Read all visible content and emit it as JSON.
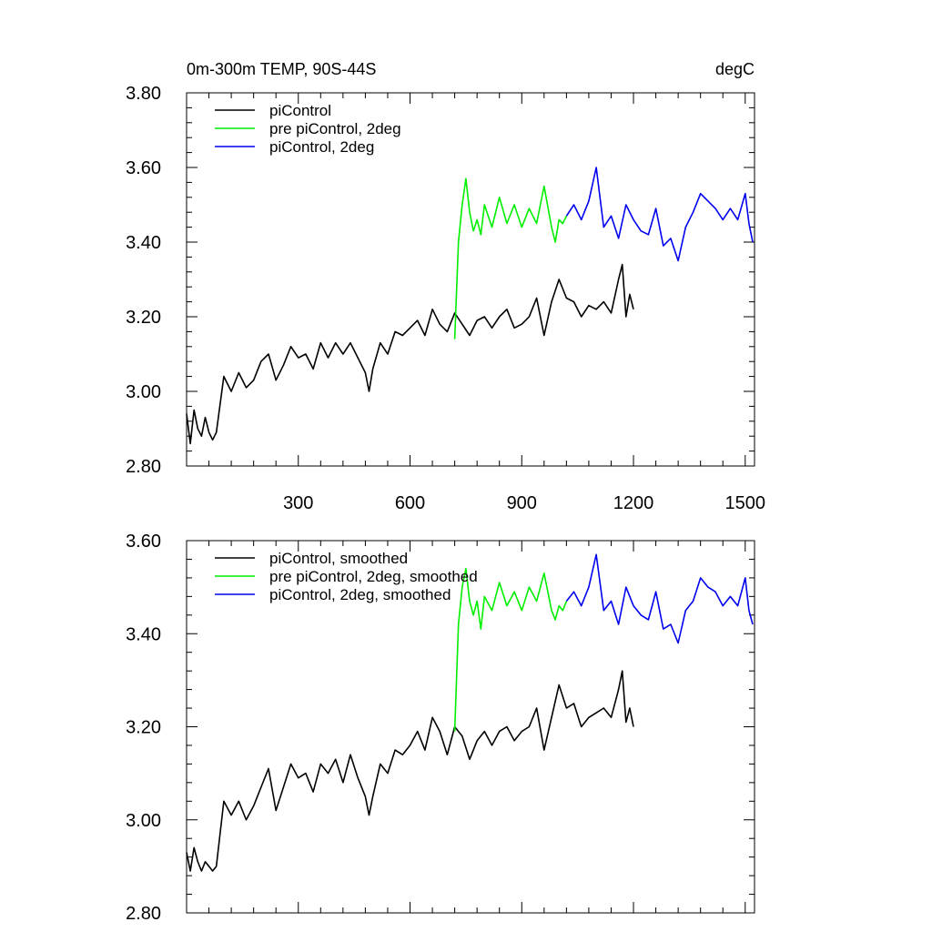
{
  "colors": {
    "piControl": "#000000",
    "pre_piControl_2deg": "#00ee00",
    "piControl_2deg": "#0000ee"
  },
  "chart_data": [
    {
      "type": "line",
      "title_left": "0m-300m TEMP, 90S-44S",
      "title_right": "degC",
      "xlim": [
        0,
        1525
      ],
      "ylim": [
        2.8,
        3.8
      ],
      "xticks": [
        300,
        600,
        900,
        1200,
        1500
      ],
      "xtick_labels": [
        "300",
        "600",
        "900",
        "1200",
        "1500"
      ],
      "yticks": [
        2.8,
        3.0,
        3.2,
        3.4,
        3.6,
        3.8
      ],
      "ytick_labels": [
        "2.80",
        "3.00",
        "3.20",
        "3.40",
        "3.60",
        "3.80"
      ],
      "legend_position": "top-left",
      "series": [
        {
          "name": "piControl",
          "color": "#000000",
          "x": [
            0,
            10,
            20,
            30,
            40,
            50,
            60,
            70,
            80,
            100,
            120,
            140,
            160,
            180,
            200,
            220,
            240,
            260,
            280,
            300,
            320,
            340,
            360,
            380,
            400,
            420,
            440,
            460,
            480,
            490,
            500,
            520,
            540,
            560,
            580,
            600,
            620,
            640,
            660,
            680,
            700,
            720,
            740,
            760,
            780,
            800,
            820,
            840,
            860,
            880,
            900,
            920,
            940,
            960,
            980,
            1000,
            1020,
            1040,
            1060,
            1080,
            1100,
            1120,
            1140,
            1160,
            1170,
            1180,
            1190,
            1200
          ],
          "y": [
            2.94,
            2.86,
            2.95,
            2.9,
            2.88,
            2.93,
            2.89,
            2.87,
            2.89,
            3.04,
            3.0,
            3.05,
            3.01,
            3.03,
            3.08,
            3.1,
            3.03,
            3.07,
            3.12,
            3.09,
            3.1,
            3.06,
            3.13,
            3.09,
            3.13,
            3.1,
            3.13,
            3.09,
            3.05,
            3.0,
            3.06,
            3.13,
            3.1,
            3.16,
            3.15,
            3.17,
            3.19,
            3.15,
            3.22,
            3.18,
            3.16,
            3.21,
            3.18,
            3.15,
            3.19,
            3.2,
            3.17,
            3.2,
            3.22,
            3.17,
            3.18,
            3.2,
            3.25,
            3.15,
            3.24,
            3.3,
            3.25,
            3.24,
            3.2,
            3.23,
            3.22,
            3.24,
            3.21,
            3.3,
            3.34,
            3.2,
            3.26,
            3.22
          ]
        },
        {
          "name": "pre piControl, 2deg",
          "color": "#00ee00",
          "x": [
            720,
            730,
            740,
            750,
            760,
            770,
            780,
            790,
            800,
            820,
            840,
            860,
            880,
            900,
            920,
            940,
            960,
            980,
            990,
            1000,
            1010,
            1020
          ],
          "y": [
            3.14,
            3.4,
            3.5,
            3.57,
            3.48,
            3.43,
            3.46,
            3.42,
            3.5,
            3.44,
            3.52,
            3.45,
            3.5,
            3.44,
            3.49,
            3.45,
            3.55,
            3.44,
            3.4,
            3.46,
            3.45,
            3.47
          ]
        },
        {
          "name": "piControl, 2deg",
          "color": "#0000ee",
          "x": [
            1020,
            1040,
            1060,
            1080,
            1100,
            1120,
            1140,
            1160,
            1180,
            1200,
            1220,
            1240,
            1260,
            1280,
            1300,
            1320,
            1340,
            1360,
            1380,
            1400,
            1420,
            1440,
            1460,
            1480,
            1500,
            1510,
            1520
          ],
          "y": [
            3.47,
            3.5,
            3.46,
            3.51,
            3.6,
            3.44,
            3.47,
            3.41,
            3.5,
            3.46,
            3.43,
            3.42,
            3.49,
            3.39,
            3.41,
            3.35,
            3.44,
            3.48,
            3.53,
            3.51,
            3.49,
            3.46,
            3.49,
            3.46,
            3.53,
            3.45,
            3.4
          ]
        }
      ]
    },
    {
      "type": "line",
      "xlim": [
        0,
        1525
      ],
      "ylim": [
        2.8,
        3.6
      ],
      "xticks": [
        300,
        600,
        900,
        1200,
        1500
      ],
      "yticks": [
        2.8,
        3.0,
        3.2,
        3.4,
        3.6
      ],
      "ytick_labels": [
        "2.80",
        "3.00",
        "3.20",
        "3.40",
        "3.60"
      ],
      "legend_position": "top-left",
      "series": [
        {
          "name": "piControl, smoothed",
          "color": "#000000",
          "x": [
            0,
            10,
            20,
            30,
            40,
            50,
            60,
            70,
            80,
            100,
            120,
            140,
            160,
            180,
            200,
            220,
            240,
            260,
            280,
            300,
            320,
            340,
            360,
            380,
            400,
            420,
            440,
            460,
            480,
            490,
            500,
            520,
            540,
            560,
            580,
            600,
            620,
            640,
            660,
            680,
            700,
            720,
            740,
            760,
            780,
            800,
            820,
            840,
            860,
            880,
            900,
            920,
            940,
            960,
            980,
            1000,
            1020,
            1040,
            1060,
            1080,
            1100,
            1120,
            1140,
            1160,
            1170,
            1180,
            1190,
            1200
          ],
          "y": [
            2.93,
            2.89,
            2.94,
            2.91,
            2.89,
            2.91,
            2.9,
            2.89,
            2.9,
            3.04,
            3.01,
            3.04,
            3.0,
            3.03,
            3.07,
            3.11,
            3.02,
            3.07,
            3.12,
            3.09,
            3.1,
            3.06,
            3.12,
            3.1,
            3.13,
            3.08,
            3.14,
            3.09,
            3.05,
            3.01,
            3.05,
            3.12,
            3.1,
            3.15,
            3.14,
            3.16,
            3.19,
            3.15,
            3.22,
            3.19,
            3.14,
            3.2,
            3.18,
            3.13,
            3.17,
            3.19,
            3.16,
            3.19,
            3.2,
            3.17,
            3.19,
            3.2,
            3.24,
            3.15,
            3.22,
            3.29,
            3.24,
            3.25,
            3.2,
            3.22,
            3.23,
            3.24,
            3.22,
            3.28,
            3.32,
            3.21,
            3.24,
            3.2
          ]
        },
        {
          "name": "pre piControl, 2deg, smoothed",
          "color": "#00ee00",
          "x": [
            720,
            730,
            740,
            750,
            760,
            770,
            780,
            790,
            800,
            820,
            840,
            860,
            880,
            900,
            920,
            940,
            960,
            980,
            990,
            1000,
            1010,
            1020
          ],
          "y": [
            3.19,
            3.42,
            3.5,
            3.54,
            3.47,
            3.44,
            3.47,
            3.41,
            3.48,
            3.45,
            3.51,
            3.46,
            3.49,
            3.45,
            3.5,
            3.47,
            3.53,
            3.45,
            3.43,
            3.46,
            3.45,
            3.47
          ]
        },
        {
          "name": "piControl, 2deg, smoothed",
          "color": "#0000ee",
          "x": [
            1020,
            1040,
            1060,
            1080,
            1100,
            1120,
            1140,
            1160,
            1180,
            1200,
            1220,
            1240,
            1260,
            1280,
            1300,
            1320,
            1340,
            1360,
            1380,
            1400,
            1420,
            1440,
            1460,
            1480,
            1500,
            1510,
            1520
          ],
          "y": [
            3.47,
            3.49,
            3.46,
            3.5,
            3.57,
            3.45,
            3.47,
            3.42,
            3.5,
            3.46,
            3.44,
            3.43,
            3.49,
            3.41,
            3.42,
            3.38,
            3.45,
            3.47,
            3.52,
            3.5,
            3.49,
            3.46,
            3.48,
            3.46,
            3.52,
            3.45,
            3.42
          ]
        }
      ]
    }
  ]
}
